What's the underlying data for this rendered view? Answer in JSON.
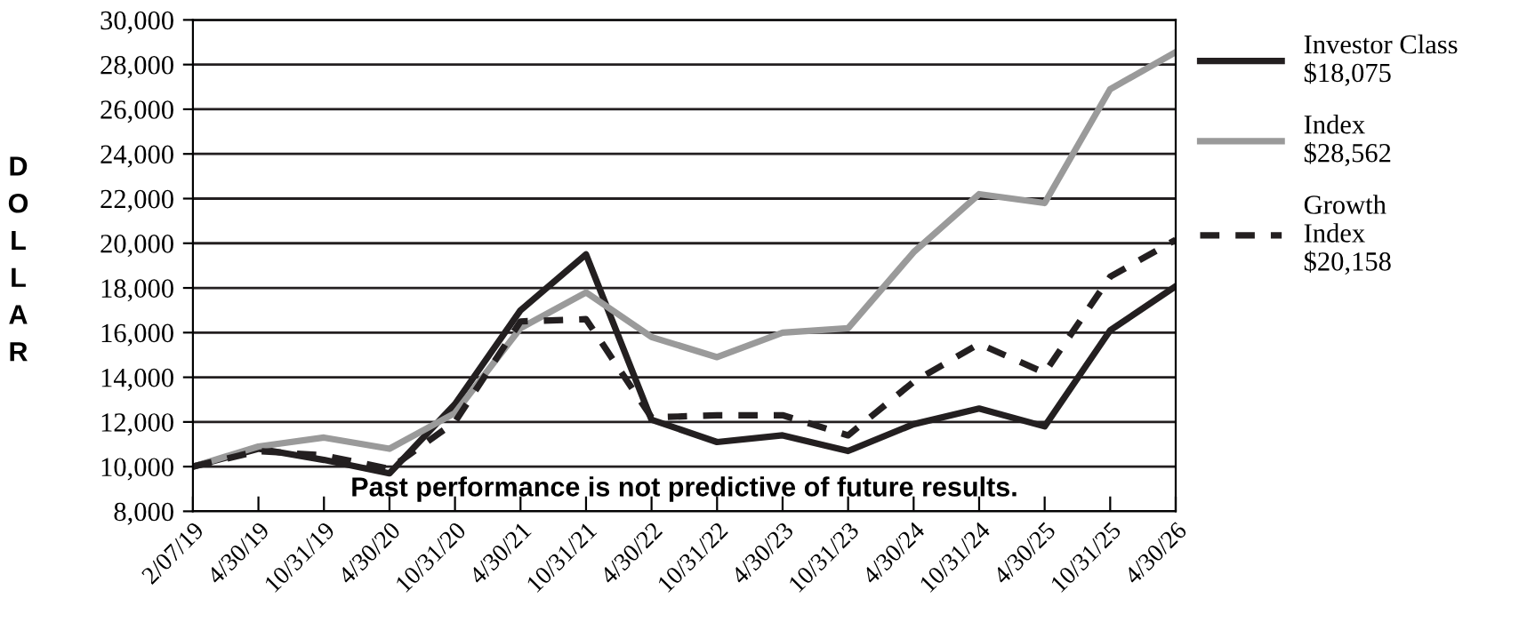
{
  "chart_data": {
    "type": "line",
    "ylabel": "DOLLAR",
    "categories": [
      "2/07/19",
      "4/30/19",
      "10/31/19",
      "4/30/20",
      "10/31/20",
      "4/30/21",
      "10/31/21",
      "4/30/22",
      "10/31/22",
      "4/30/23",
      "10/31/23",
      "4/30/24",
      "10/31/24",
      "4/30/25",
      "10/31/25",
      "4/30/26"
    ],
    "series": [
      {
        "name": "Investor Class\n$18,075",
        "color": "#231f20",
        "line_style": "solid",
        "values": [
          10000,
          10800,
          10300,
          9700,
          12800,
          17000,
          19500,
          12100,
          11100,
          11400,
          10700,
          11900,
          12600,
          11800,
          16100,
          18075
        ]
      },
      {
        "name": "Index\n$28,562",
        "color": "#9a9a9a",
        "line_style": "solid",
        "values": [
          10000,
          10900,
          11300,
          10800,
          12400,
          16200,
          17800,
          15800,
          14900,
          16000,
          16200,
          19600,
          22200,
          21800,
          26900,
          28562
        ]
      },
      {
        "name": "Growth\nIndex\n$20,158",
        "color": "#231f20",
        "line_style": "dashed",
        "values": [
          10000,
          10700,
          10500,
          9900,
          12000,
          16500,
          16600,
          12200,
          12300,
          12300,
          11400,
          13800,
          15500,
          14200,
          18500,
          20158
        ]
      }
    ],
    "ylim": [
      8000,
      30000
    ],
    "yticks": [
      {
        "value": 8000,
        "label": "8,000"
      },
      {
        "value": 10000,
        "label": "10,000"
      },
      {
        "value": 12000,
        "label": "12,000"
      },
      {
        "value": 14000,
        "label": "14,000"
      },
      {
        "value": 16000,
        "label": "16,000"
      },
      {
        "value": 18000,
        "label": "18,000"
      },
      {
        "value": 20000,
        "label": "20,000"
      },
      {
        "value": 22000,
        "label": "22,000"
      },
      {
        "value": 24000,
        "label": "24,000"
      },
      {
        "value": 26000,
        "label": "26,000"
      },
      {
        "value": 28000,
        "label": "28,000"
      },
      {
        "value": 30000,
        "label": "30,000"
      }
    ],
    "grid": "y",
    "legend": "right",
    "marker": "none",
    "annotations": [
      "Past performance is not predictive of future results."
    ]
  }
}
